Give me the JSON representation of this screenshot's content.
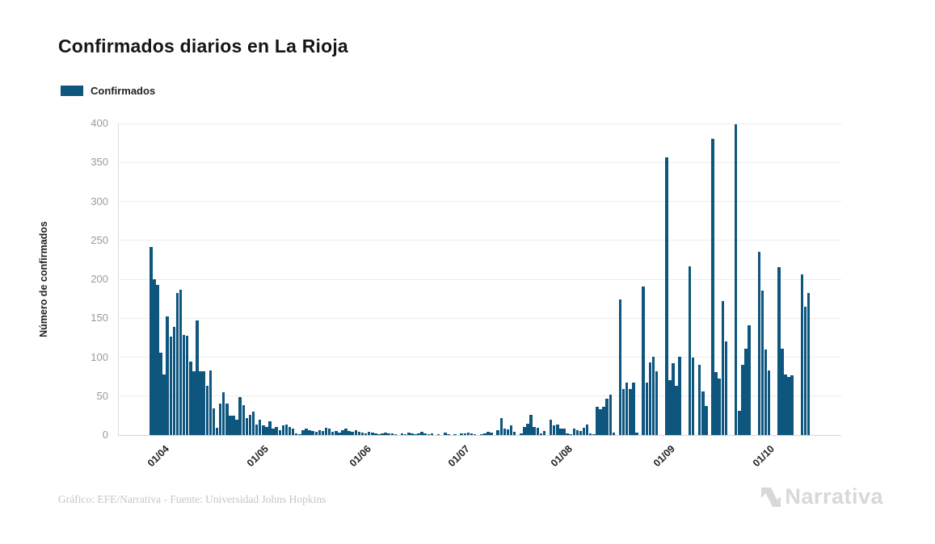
{
  "header": {
    "title": "Confirmados diarios en La Rioja"
  },
  "legend": {
    "label": "Confirmados",
    "swatch_color": "#0e567e"
  },
  "footer": {
    "credit": "Gráfico: EFE/Narrativa - Fuente: Universidad Johns Hopkins",
    "logo_text": "Narrativa"
  },
  "colors": {
    "bar": "#0e567e",
    "grid": "#ececec",
    "y_tick_text": "#9a9a9a",
    "x_tick_text": "#222222",
    "title_text": "#161616",
    "footer_text": "#c6c6c6",
    "logo_text": "#d8d8d8"
  },
  "chart_data": {
    "type": "bar",
    "title": "Confirmados diarios en La Rioja",
    "series_name": "Confirmados",
    "xlabel": "",
    "ylabel": "Número de confirmados",
    "ylim": [
      0,
      400
    ],
    "yticks": [
      0,
      50,
      100,
      150,
      200,
      250,
      300,
      350,
      400
    ],
    "grid": true,
    "legend_position": "top-left",
    "bar_color": "#0e567e",
    "x_start_date": "28/03/2020",
    "x_frequency": "daily",
    "xticks": [
      {
        "label": "01/04",
        "day_index": 4
      },
      {
        "label": "01/05",
        "day_index": 34
      },
      {
        "label": "01/06",
        "day_index": 65
      },
      {
        "label": "01/07",
        "day_index": 95
      },
      {
        "label": "01/08",
        "day_index": 126
      },
      {
        "label": "01/09",
        "day_index": 157
      },
      {
        "label": "01/10",
        "day_index": 187
      }
    ],
    "values": [
      241,
      200,
      193,
      106,
      78,
      152,
      126,
      139,
      182,
      187,
      128,
      127,
      94,
      82,
      147,
      82,
      82,
      63,
      83,
      34,
      9,
      40,
      55,
      40,
      25,
      25,
      20,
      49,
      38,
      22,
      26,
      30,
      14,
      20,
      12,
      10,
      18,
      8,
      10,
      6,
      12,
      13,
      10,
      8,
      2,
      1,
      6,
      8,
      6,
      5,
      4,
      6,
      5,
      9,
      8,
      4,
      5,
      3,
      6,
      8,
      5,
      4,
      6,
      4,
      3,
      2,
      4,
      3,
      2,
      1,
      2,
      3,
      2,
      2,
      1,
      0,
      2,
      1,
      3,
      2,
      1,
      2,
      4,
      2,
      1,
      2,
      0,
      1,
      0,
      3,
      1,
      0,
      1,
      0,
      2,
      2,
      3,
      2,
      1,
      0,
      1,
      2,
      4,
      3,
      0,
      6,
      22,
      8,
      7,
      12,
      4,
      0,
      2,
      10,
      15,
      26,
      10,
      9,
      2,
      5,
      0,
      20,
      12,
      13,
      8,
      8,
      2,
      1,
      8,
      6,
      5,
      9,
      14,
      2,
      1,
      36,
      33,
      36,
      47,
      52,
      3,
      0,
      174,
      59,
      67,
      59,
      67,
      3,
      0,
      191,
      67,
      93,
      101,
      82,
      0,
      0,
      356,
      71,
      92,
      63,
      101,
      0,
      0,
      217,
      99,
      0,
      90,
      56,
      37,
      0,
      380,
      81,
      73,
      172,
      120,
      0,
      0,
      399,
      31,
      90,
      111,
      141,
      0,
      0,
      235,
      186,
      110,
      83,
      0,
      0,
      216,
      111,
      78,
      75,
      77,
      0,
      0,
      206,
      165,
      182
    ]
  }
}
